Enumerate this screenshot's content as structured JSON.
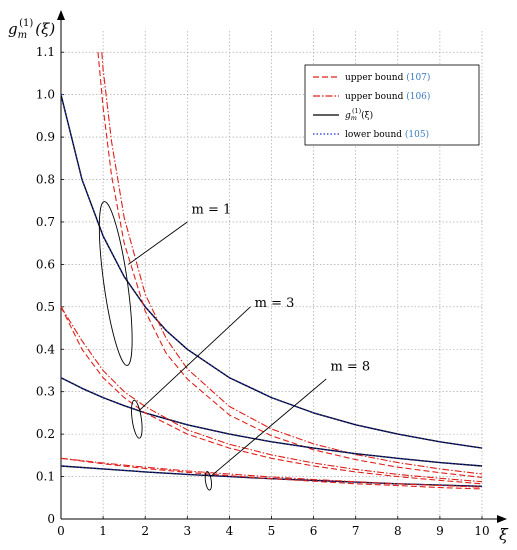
{
  "chart_data": {
    "type": "line",
    "xlabel": "ξ",
    "ylabel": "g_m^(1)(ξ)",
    "ylabel_parts": {
      "base": "g",
      "sub": "m",
      "sup": "(1)",
      "arg": "(ξ)"
    },
    "xlim": [
      0,
      10
    ],
    "ylim": [
      0,
      1.15
    ],
    "xticks": [
      0,
      1,
      2,
      3,
      4,
      5,
      6,
      7,
      8,
      9,
      10
    ],
    "yticks": [
      0,
      0.1,
      0.2,
      0.3,
      0.4,
      0.5,
      0.6,
      0.7,
      0.8,
      0.9,
      1.0,
      1.1
    ],
    "ytick_labels": [
      "0",
      "0.1",
      "0.2",
      "0.3",
      "0.4",
      "0.5",
      "0.6",
      "0.7",
      "0.8",
      "0.9",
      "1.0",
      "1.1"
    ],
    "grid": true,
    "legend_position": "top-right",
    "legend": [
      {
        "key": "upper107",
        "text": "upper bound ",
        "ref": "(107)",
        "color": "#e0201b",
        "dash": "6,3"
      },
      {
        "key": "upper106",
        "text": "upper bound ",
        "ref": "(106)",
        "color": "#e0201b",
        "dash": "7,2,1.5,2"
      },
      {
        "key": "exact",
        "text": "g_m^(1)(ξ)",
        "ref": "",
        "color": "#000000",
        "dash": ""
      },
      {
        "key": "lower105",
        "text": "lower bound ",
        "ref": "(105)",
        "color": "#1e2fd6",
        "dash": "1.5,2"
      }
    ],
    "series": [
      {
        "key": "m1_exact",
        "group": "m=1",
        "style": "exact",
        "x": [
          0,
          0.5,
          1,
          1.5,
          2,
          2.5,
          3,
          4,
          5,
          6,
          7,
          8,
          9,
          10
        ],
        "values": [
          1.0,
          0.8,
          0.667,
          0.571,
          0.5,
          0.444,
          0.4,
          0.333,
          0.286,
          0.25,
          0.222,
          0.2,
          0.182,
          0.167
        ]
      },
      {
        "key": "m1_lower",
        "group": "m=1",
        "style": "lower105",
        "x": [
          0,
          0.5,
          1,
          1.5,
          2,
          2.5,
          3,
          4,
          5,
          6,
          7,
          8,
          9,
          10
        ],
        "values": [
          1.0,
          0.8,
          0.667,
          0.571,
          0.5,
          0.444,
          0.4,
          0.333,
          0.286,
          0.25,
          0.222,
          0.2,
          0.182,
          0.167
        ]
      },
      {
        "key": "m1_upper107",
        "group": "m=1",
        "style": "upper107",
        "x": [
          0.88,
          1,
          1.2,
          1.5,
          2,
          2.5,
          3,
          4,
          5,
          6,
          7,
          8,
          9,
          10
        ],
        "values": [
          1.1,
          0.97,
          0.81,
          0.65,
          0.49,
          0.39,
          0.33,
          0.245,
          0.196,
          0.163,
          0.14,
          0.122,
          0.109,
          0.098
        ]
      },
      {
        "key": "m1_upper106",
        "group": "m=1",
        "style": "upper106",
        "x": [
          0.97,
          1,
          1.2,
          1.5,
          2,
          2.5,
          3,
          4,
          5,
          6,
          7,
          8,
          9,
          10
        ],
        "values": [
          1.1,
          1.06,
          0.89,
          0.71,
          0.53,
          0.425,
          0.354,
          0.265,
          0.212,
          0.177,
          0.152,
          0.133,
          0.118,
          0.106
        ]
      },
      {
        "key": "m3_exact",
        "group": "m=3",
        "style": "exact",
        "x": [
          0,
          0.5,
          1,
          1.5,
          2,
          3,
          4,
          5,
          6,
          7,
          8,
          9,
          10
        ],
        "values": [
          0.333,
          0.308,
          0.286,
          0.267,
          0.25,
          0.222,
          0.2,
          0.182,
          0.167,
          0.154,
          0.143,
          0.133,
          0.125
        ]
      },
      {
        "key": "m3_lower",
        "group": "m=3",
        "style": "lower105",
        "x": [
          0,
          0.5,
          1,
          1.5,
          2,
          3,
          4,
          5,
          6,
          7,
          8,
          9,
          10
        ],
        "values": [
          0.333,
          0.308,
          0.286,
          0.267,
          0.25,
          0.222,
          0.2,
          0.182,
          0.167,
          0.154,
          0.143,
          0.133,
          0.125
        ]
      },
      {
        "key": "m3_upper107",
        "group": "m=3",
        "style": "upper107",
        "x": [
          0,
          0.5,
          1,
          1.5,
          2,
          3,
          4,
          5,
          6,
          7,
          8,
          9,
          10
        ],
        "values": [
          0.5,
          0.4,
          0.333,
          0.286,
          0.25,
          0.2,
          0.167,
          0.143,
          0.125,
          0.111,
          0.1,
          0.091,
          0.083
        ]
      },
      {
        "key": "m3_upper106",
        "group": "m=3",
        "style": "upper106",
        "x": [
          0,
          0.5,
          1,
          1.5,
          2,
          3,
          4,
          5,
          6,
          7,
          8,
          9,
          10
        ],
        "values": [
          0.5,
          0.42,
          0.35,
          0.3,
          0.265,
          0.21,
          0.176,
          0.151,
          0.132,
          0.117,
          0.105,
          0.096,
          0.088
        ]
      },
      {
        "key": "m8_exact",
        "group": "m=8",
        "style": "exact",
        "x": [
          0,
          1,
          2,
          3,
          4,
          5,
          6,
          7,
          8,
          9,
          10
        ],
        "values": [
          0.125,
          0.118,
          0.111,
          0.105,
          0.1,
          0.095,
          0.091,
          0.087,
          0.083,
          0.08,
          0.077
        ]
      },
      {
        "key": "m8_lower",
        "group": "m=8",
        "style": "lower105",
        "x": [
          0,
          1,
          2,
          3,
          4,
          5,
          6,
          7,
          8,
          9,
          10
        ],
        "values": [
          0.125,
          0.118,
          0.111,
          0.105,
          0.1,
          0.095,
          0.091,
          0.087,
          0.083,
          0.08,
          0.077
        ]
      },
      {
        "key": "m8_upper107",
        "group": "m=8",
        "style": "upper107",
        "x": [
          0,
          1,
          2,
          3,
          4,
          5,
          6,
          7,
          8,
          9,
          10
        ],
        "values": [
          0.143,
          0.13,
          0.119,
          0.11,
          0.102,
          0.095,
          0.089,
          0.083,
          0.079,
          0.074,
          0.071
        ]
      },
      {
        "key": "m8_upper106",
        "group": "m=8",
        "style": "upper106",
        "x": [
          0,
          1,
          2,
          3,
          4,
          5,
          6,
          7,
          8,
          9,
          10
        ],
        "values": [
          0.143,
          0.132,
          0.122,
          0.113,
          0.106,
          0.099,
          0.093,
          0.088,
          0.083,
          0.079,
          0.075
        ]
      }
    ],
    "annotations": [
      {
        "key": "m1",
        "text": "m = 1",
        "x": 3.1,
        "y": 0.72,
        "ellipse": {
          "cx": 1.3,
          "cy": 0.555,
          "rx": 0.28,
          "ry": 0.195
        },
        "pointer_from": [
          3.0,
          0.7
        ],
        "pointer_to": [
          1.6,
          0.6
        ]
      },
      {
        "key": "m3",
        "text": "m = 3",
        "x": 4.6,
        "y": 0.5,
        "ellipse": {
          "cx": 1.8,
          "cy": 0.235,
          "rx": 0.11,
          "ry": 0.045
        },
        "pointer_from": [
          4.5,
          0.5
        ],
        "pointer_to": [
          1.85,
          0.255
        ]
      },
      {
        "key": "m8",
        "text": "m = 8",
        "x": 6.4,
        "y": 0.35,
        "ellipse": {
          "cx": 3.5,
          "cy": 0.09,
          "rx": 0.07,
          "ry": 0.022
        },
        "pointer_from": [
          6.3,
          0.33
        ],
        "pointer_to": [
          3.55,
          0.1
        ]
      }
    ]
  }
}
